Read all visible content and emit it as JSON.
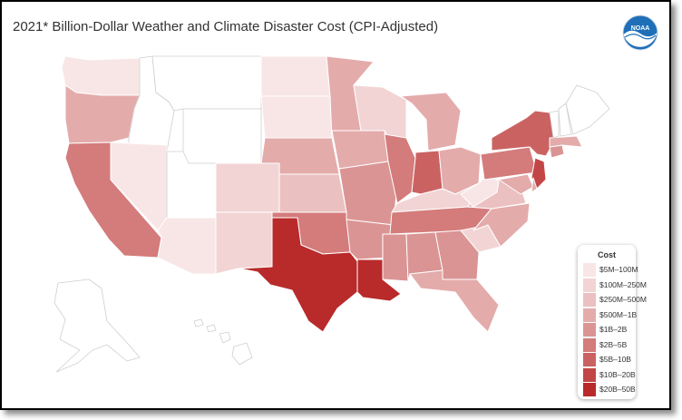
{
  "title": "2021* Billion-Dollar Weather and Climate Disaster Cost (CPI-Adjusted)",
  "logo": {
    "text": "NOAA",
    "icon": "noaa-logo"
  },
  "legend": {
    "title": "Cost",
    "bins": [
      {
        "label": "$5M–100M",
        "color": "#f8e6e6"
      },
      {
        "label": "$100M–250M",
        "color": "#f2d4d4"
      },
      {
        "label": "$250M–500M",
        "color": "#ebc0c0"
      },
      {
        "label": "$500M–1B",
        "color": "#e4abab"
      },
      {
        "label": "$1B–2B",
        "color": "#db9494"
      },
      {
        "label": "$2B–5B",
        "color": "#d47b7b"
      },
      {
        "label": "$5B–10B",
        "color": "#cb6262"
      },
      {
        "label": "$10B–20B",
        "color": "#c34646"
      },
      {
        "label": "$20B–50B",
        "color": "#b92a2a"
      }
    ],
    "no_data_color": "#ffffff"
  },
  "states": [
    {
      "name": "Washington",
      "bin": 0
    },
    {
      "name": "Oregon",
      "bin": 3
    },
    {
      "name": "California",
      "bin": 5
    },
    {
      "name": "Idaho",
      "bin": -1
    },
    {
      "name": "Nevada",
      "bin": 0
    },
    {
      "name": "Utah",
      "bin": -1
    },
    {
      "name": "Arizona",
      "bin": 0
    },
    {
      "name": "Montana",
      "bin": -1
    },
    {
      "name": "Wyoming",
      "bin": -1
    },
    {
      "name": "Colorado",
      "bin": 1
    },
    {
      "name": "New Mexico",
      "bin": 1
    },
    {
      "name": "North Dakota",
      "bin": 0
    },
    {
      "name": "South Dakota",
      "bin": 0
    },
    {
      "name": "Nebraska",
      "bin": 3
    },
    {
      "name": "Kansas",
      "bin": 2
    },
    {
      "name": "Oklahoma",
      "bin": 5
    },
    {
      "name": "Texas",
      "bin": 8
    },
    {
      "name": "Minnesota",
      "bin": 3
    },
    {
      "name": "Iowa",
      "bin": 3
    },
    {
      "name": "Missouri",
      "bin": 4
    },
    {
      "name": "Arkansas",
      "bin": 4
    },
    {
      "name": "Louisiana",
      "bin": 8
    },
    {
      "name": "Wisconsin",
      "bin": 1
    },
    {
      "name": "Illinois",
      "bin": 5
    },
    {
      "name": "Michigan",
      "bin": 3
    },
    {
      "name": "Indiana",
      "bin": 6
    },
    {
      "name": "Ohio",
      "bin": 3
    },
    {
      "name": "Kentucky",
      "bin": 1
    },
    {
      "name": "Tennessee",
      "bin": 5
    },
    {
      "name": "Mississippi",
      "bin": 4
    },
    {
      "name": "Alabama",
      "bin": 4
    },
    {
      "name": "Georgia",
      "bin": 4
    },
    {
      "name": "Florida",
      "bin": 3
    },
    {
      "name": "South Carolina",
      "bin": 1
    },
    {
      "name": "North Carolina",
      "bin": 3
    },
    {
      "name": "Virginia",
      "bin": 2
    },
    {
      "name": "West Virginia",
      "bin": 0
    },
    {
      "name": "Pennsylvania",
      "bin": 5
    },
    {
      "name": "New York",
      "bin": 6
    },
    {
      "name": "New Jersey",
      "bin": 7
    },
    {
      "name": "Connecticut",
      "bin": 4
    },
    {
      "name": "Massachusetts",
      "bin": 3
    },
    {
      "name": "Vermont",
      "bin": -1
    },
    {
      "name": "New Hampshire",
      "bin": -1
    },
    {
      "name": "Maine",
      "bin": -1
    },
    {
      "name": "Maryland",
      "bin": 3
    },
    {
      "name": "Delaware",
      "bin": 3
    },
    {
      "name": "Alaska",
      "bin": -1
    },
    {
      "name": "Hawaii",
      "bin": -1
    }
  ]
}
